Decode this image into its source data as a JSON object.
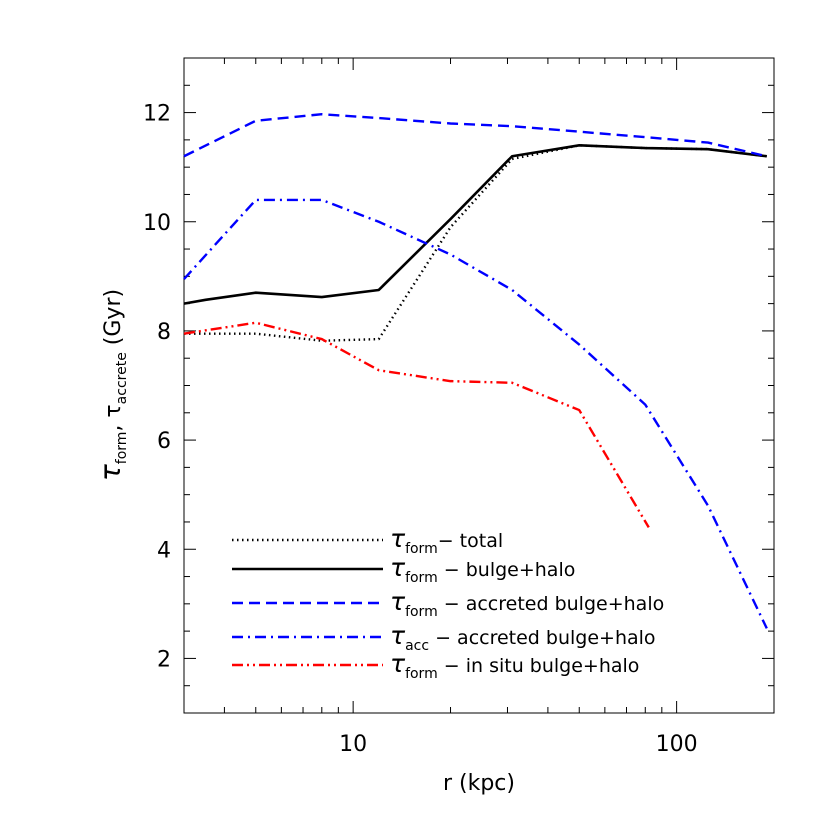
{
  "chart_data": {
    "type": "line",
    "title": "",
    "xlabel": "r (kpc)",
    "ylabel": {
      "prefix": "τ",
      "sub1": "form",
      "sep": ", τ",
      "sub2": "accrete",
      "suffix": " (Gyr)"
    },
    "xscale": "log",
    "xlim": [
      3,
      200
    ],
    "ylim": [
      1,
      13
    ],
    "x_ticks": [
      10,
      100
    ],
    "x_tick_labels": [
      "10",
      "100"
    ],
    "y_ticks": [
      2,
      4,
      6,
      8,
      10,
      12
    ],
    "y_tick_labels": [
      "2",
      "4",
      "6",
      "8",
      "10",
      "12"
    ],
    "grid": false,
    "legend_position": "bottom-right",
    "series": [
      {
        "key": "total",
        "legend": {
          "sym": "τ",
          "sub": "form",
          "text": "− total"
        },
        "color": "#000000",
        "style": "dotted",
        "x": [
          3,
          5,
          8,
          12,
          20,
          31,
          50,
          80,
          125,
          190
        ],
        "y": [
          7.95,
          7.95,
          7.82,
          7.85,
          9.9,
          11.15,
          11.4,
          11.35,
          11.33,
          11.2
        ]
      },
      {
        "key": "bulge_halo",
        "legend": {
          "sym": "τ",
          "sub": "form",
          "text": " − bulge+halo"
        },
        "color": "#000000",
        "style": "solid",
        "x": [
          3,
          3.5,
          5,
          8,
          12,
          20,
          31,
          50,
          80,
          125,
          190
        ],
        "y": [
          8.5,
          8.57,
          8.7,
          8.62,
          8.75,
          10.05,
          11.2,
          11.4,
          11.35,
          11.33,
          11.2
        ]
      },
      {
        "key": "accreted_form",
        "legend": {
          "sym": "τ",
          "sub": "form",
          "text": " − accreted bulge+halo"
        },
        "color": "#0000ff",
        "style": "dashed",
        "x": [
          3,
          5,
          8,
          12,
          20,
          31,
          50,
          80,
          125,
          190
        ],
        "y": [
          11.2,
          11.85,
          11.97,
          11.9,
          11.8,
          11.75,
          11.65,
          11.55,
          11.45,
          11.2
        ]
      },
      {
        "key": "accreted_acc",
        "legend": {
          "sym": "τ",
          "sub": "acc",
          "text": " − accreted bulge+halo"
        },
        "color": "#0000ff",
        "style": "dashdot",
        "x": [
          3,
          5,
          8,
          12,
          20,
          31,
          50,
          80,
          125,
          190
        ],
        "y": [
          8.95,
          10.4,
          10.4,
          10.0,
          9.4,
          8.75,
          7.75,
          6.65,
          4.8,
          2.55
        ]
      },
      {
        "key": "insitu",
        "legend": {
          "sym": "τ",
          "sub": "form",
          "text": " − in situ bulge+halo"
        },
        "color": "#ff0000",
        "style": "dashdotdot",
        "x": [
          3,
          5,
          8,
          12,
          20,
          31,
          50,
          82
        ],
        "y": [
          7.95,
          8.15,
          7.85,
          7.28,
          7.08,
          7.05,
          6.55,
          4.4
        ]
      }
    ]
  }
}
